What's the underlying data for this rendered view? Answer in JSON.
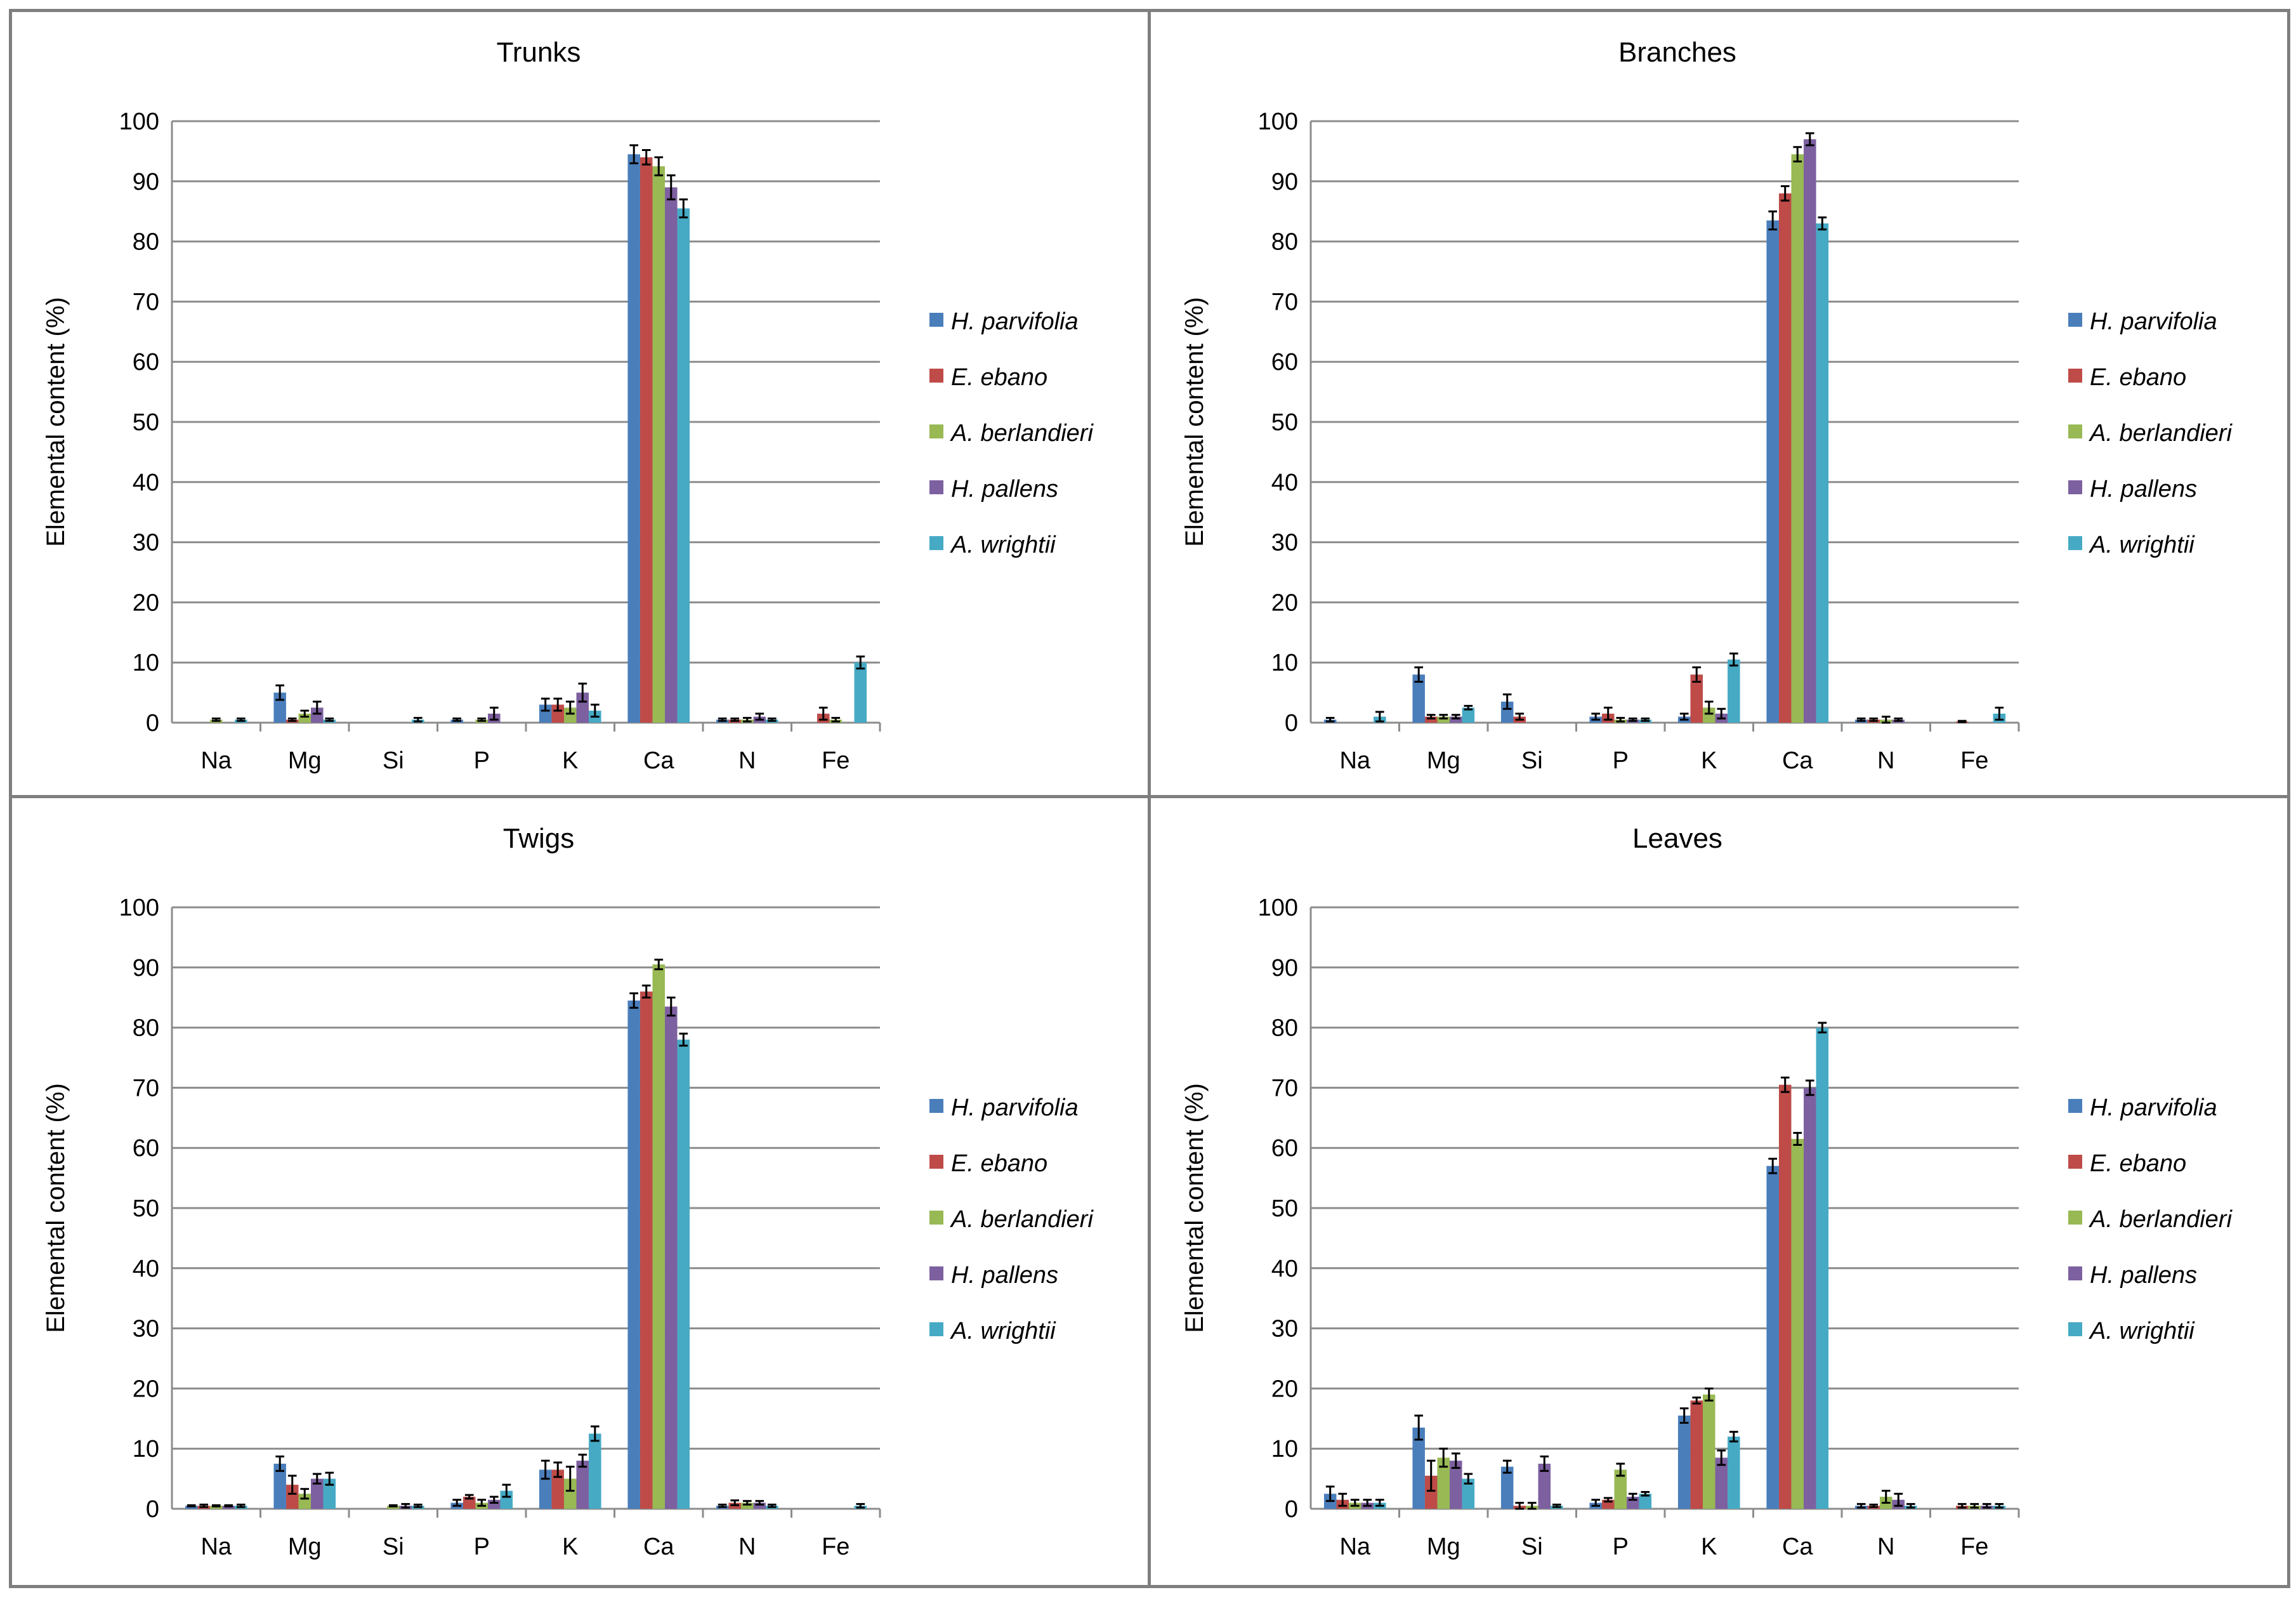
{
  "colors": {
    "series": [
      "#4a7ebb",
      "#be4b48",
      "#98b954",
      "#7d60a0",
      "#46aac5"
    ],
    "grid": "#8c8c8c",
    "axis": "#8c8c8c",
    "error_bar": "#000000"
  },
  "chart_data": [
    {
      "type": "bar",
      "title": "Trunks",
      "xlabel": "",
      "ylabel": "Elemental content (%)",
      "ylim": [
        0,
        100
      ],
      "yticks": [
        "0",
        "10",
        "20",
        "30",
        "40",
        "50",
        "60",
        "70",
        "80",
        "90",
        "100"
      ],
      "categories": [
        "Na",
        "Mg",
        "Si",
        "P",
        "K",
        "Ca",
        "N",
        "Fe"
      ],
      "legend_position": "right",
      "grid": true,
      "series": [
        {
          "name": "H. parvifolia",
          "values": [
            0,
            5,
            0,
            0.5,
            3,
            94.5,
            0.5,
            0
          ],
          "errors": [
            0,
            1.2,
            0,
            0.2,
            1,
            1.5,
            0.2,
            0
          ]
        },
        {
          "name": "E. ebano",
          "values": [
            0,
            0.5,
            0,
            0,
            3,
            94,
            0.5,
            1.5
          ],
          "errors": [
            0,
            0.2,
            0,
            0,
            1,
            1.2,
            0.2,
            1
          ]
        },
        {
          "name": "A. berlandieri",
          "values": [
            0.5,
            1.5,
            0,
            0.5,
            2.5,
            92.5,
            0.5,
            0.5
          ],
          "errors": [
            0.2,
            0.5,
            0,
            0.2,
            1,
            1.5,
            0.3,
            0.3
          ]
        },
        {
          "name": "H. pallens",
          "values": [
            0,
            2.5,
            0,
            1.5,
            5,
            89,
            1,
            0
          ],
          "errors": [
            0,
            1,
            0,
            1,
            1.5,
            2,
            0.5,
            0
          ]
        },
        {
          "name": "A. wrightii",
          "values": [
            0.5,
            0.5,
            0.5,
            0,
            2,
            85.5,
            0.5,
            10
          ],
          "errors": [
            0.2,
            0.2,
            0.3,
            0,
            1,
            1.5,
            0.2,
            1
          ]
        }
      ]
    },
    {
      "type": "bar",
      "title": "Branches",
      "xlabel": "",
      "ylabel": "Elemental content (%)",
      "ylim": [
        0,
        100
      ],
      "yticks": [
        "0",
        "10",
        "20",
        "30",
        "40",
        "50",
        "60",
        "70",
        "80",
        "90",
        "100"
      ],
      "categories": [
        "Na",
        "Mg",
        "Si",
        "P",
        "K",
        "Ca",
        "N",
        "Fe"
      ],
      "legend_position": "right",
      "grid": true,
      "series": [
        {
          "name": "H. parvifolia",
          "values": [
            0.5,
            8,
            3.5,
            1,
            1,
            83.5,
            0.5,
            0
          ],
          "errors": [
            0.3,
            1.2,
            1.2,
            0.5,
            0.5,
            1.5,
            0.2,
            0
          ]
        },
        {
          "name": "E. ebano",
          "values": [
            0,
            1,
            1,
            1.5,
            8,
            88,
            0.5,
            0.2
          ],
          "errors": [
            0,
            0.3,
            0.5,
            1,
            1.2,
            1.2,
            0.2,
            0.1
          ]
        },
        {
          "name": "A. berlandieri",
          "values": [
            0,
            1,
            0,
            0.5,
            2.5,
            94.5,
            0.5,
            0
          ],
          "errors": [
            0,
            0.3,
            0,
            0.3,
            1,
            1.2,
            0.5,
            0
          ]
        },
        {
          "name": "H. pallens",
          "values": [
            0,
            1,
            0,
            0.5,
            1.5,
            97,
            0.5,
            0
          ],
          "errors": [
            0,
            0.3,
            0,
            0.2,
            0.8,
            1,
            0.2,
            0
          ]
        },
        {
          "name": "A. wrightii",
          "values": [
            1,
            2.5,
            0,
            0.5,
            10.5,
            83,
            0,
            1.5
          ],
          "errors": [
            0.8,
            0.3,
            0,
            0.2,
            1,
            1,
            0,
            1
          ]
        }
      ]
    },
    {
      "type": "bar",
      "title": "Twigs",
      "xlabel": "",
      "ylabel": "Elemental content (%)",
      "ylim": [
        0,
        100
      ],
      "yticks": [
        "0",
        "10",
        "20",
        "30",
        "40",
        "50",
        "60",
        "70",
        "80",
        "90",
        "100"
      ],
      "categories": [
        "Na",
        "Mg",
        "Si",
        "P",
        "K",
        "Ca",
        "N",
        "Fe"
      ],
      "legend_position": "right",
      "grid": true,
      "series": [
        {
          "name": "H. parvifolia",
          "values": [
            0.5,
            7.5,
            0,
            1,
            6.5,
            84.5,
            0.5,
            0
          ],
          "errors": [
            0.1,
            1.2,
            0,
            0.5,
            1.5,
            1.2,
            0.2,
            0
          ]
        },
        {
          "name": "E. ebano",
          "values": [
            0.5,
            4,
            0,
            2,
            6.5,
            86,
            1,
            0
          ],
          "errors": [
            0.2,
            1.5,
            0,
            0.3,
            1.2,
            1,
            0.4,
            0
          ]
        },
        {
          "name": "A. berlandieri",
          "values": [
            0.5,
            2.5,
            0.5,
            1,
            5,
            90.5,
            1,
            0
          ],
          "errors": [
            0.1,
            0.8,
            0.1,
            0.5,
            2,
            0.8,
            0.3,
            0
          ]
        },
        {
          "name": "H. pallens",
          "values": [
            0.5,
            5,
            0.5,
            1.5,
            8,
            83.5,
            1,
            0
          ],
          "errors": [
            0.1,
            0.8,
            0.3,
            0.5,
            1,
            1.5,
            0.3,
            0
          ]
        },
        {
          "name": "A. wrightii",
          "values": [
            0.5,
            5,
            0.5,
            3,
            12.5,
            78,
            0.5,
            0.5
          ],
          "errors": [
            0.2,
            1,
            0.2,
            1,
            1.2,
            1,
            0.2,
            0.3
          ]
        }
      ]
    },
    {
      "type": "bar",
      "title": "Leaves",
      "xlabel": "",
      "ylabel": "Elemental content (%)",
      "ylim": [
        0,
        100
      ],
      "yticks": [
        "0",
        "10",
        "20",
        "30",
        "40",
        "50",
        "60",
        "70",
        "80",
        "90",
        "100"
      ],
      "categories": [
        "Na",
        "Mg",
        "Si",
        "P",
        "K",
        "Ca",
        "N",
        "Fe"
      ],
      "legend_position": "right",
      "grid": true,
      "series": [
        {
          "name": "H. parvifolia",
          "values": [
            2.5,
            13.5,
            7,
            1,
            15.5,
            57,
            0.5,
            0
          ],
          "errors": [
            1.2,
            2,
            1,
            0.5,
            1.2,
            1.2,
            0.3,
            0
          ]
        },
        {
          "name": "E. ebano",
          "values": [
            1.5,
            5.5,
            0.5,
            1.5,
            18,
            70.5,
            0.5,
            0.5
          ],
          "errors": [
            1,
            2.5,
            0.5,
            0.3,
            0.5,
            1.2,
            0.2,
            0.3
          ]
        },
        {
          "name": "A. berlandieri",
          "values": [
            1,
            8.5,
            0.5,
            6.5,
            19,
            61.5,
            2,
            0.5
          ],
          "errors": [
            0.5,
            1.5,
            0.5,
            1,
            1,
            1,
            1,
            0.3
          ]
        },
        {
          "name": "H. pallens",
          "values": [
            1,
            8,
            7.5,
            2,
            8.5,
            70,
            1.5,
            0.5
          ],
          "errors": [
            0.5,
            1.2,
            1.2,
            0.5,
            1.2,
            1.2,
            1,
            0.3
          ]
        },
        {
          "name": "A. wrightii",
          "values": [
            1,
            5,
            0.5,
            2.5,
            12,
            80,
            0.5,
            0.5
          ],
          "errors": [
            0.5,
            0.8,
            0.2,
            0.3,
            0.8,
            0.8,
            0.3,
            0.3
          ]
        }
      ]
    }
  ]
}
